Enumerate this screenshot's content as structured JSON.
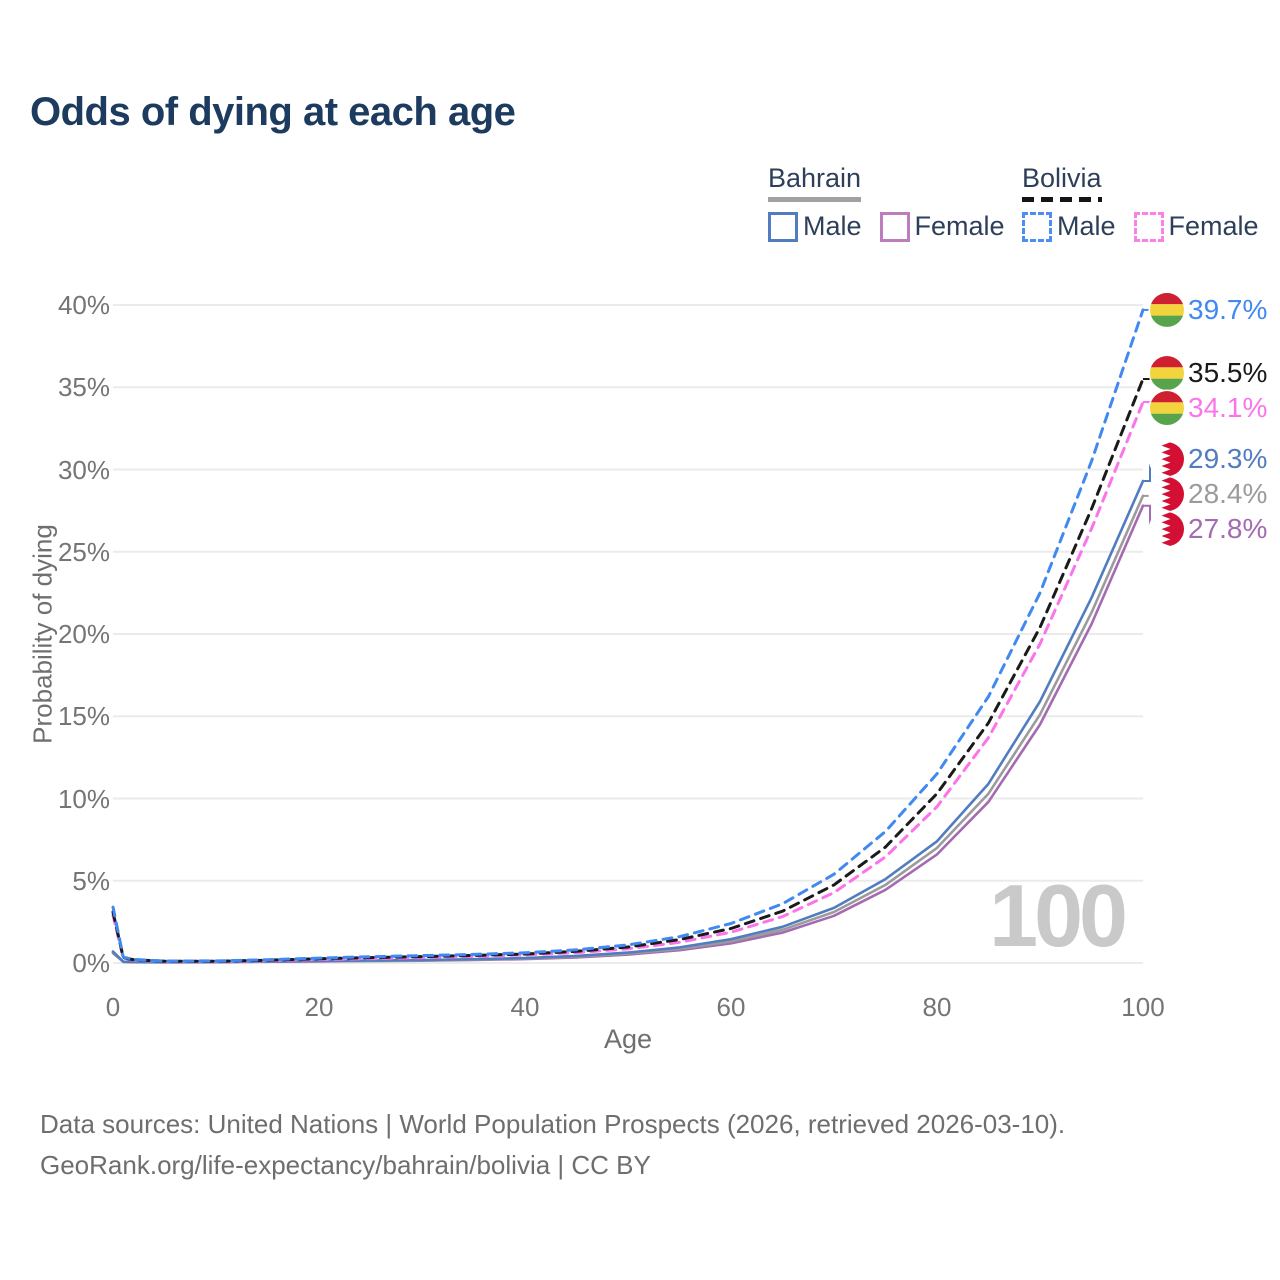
{
  "title": "Odds of dying at each age",
  "watermark": "100",
  "legend": {
    "groups": [
      {
        "country": "Bahrain",
        "line_style": "solid",
        "underline_color": "#a1a1a1",
        "items": [
          {
            "label": "Male",
            "color": "#517dc0",
            "dashed": false
          },
          {
            "label": "Female",
            "color": "#bd7cbe",
            "dashed": false
          }
        ]
      },
      {
        "country": "Bolivia",
        "line_style": "dashed",
        "underline_color": "#141414",
        "items": [
          {
            "label": "Male",
            "color": "#4d8df5",
            "dashed": true
          },
          {
            "label": "Female",
            "color": "#fb80e8",
            "dashed": true
          }
        ]
      }
    ]
  },
  "flags": {
    "bolivia": {
      "red": "#ce2030",
      "yellow": "#f3d43c",
      "green": "#57a44c"
    },
    "bahrain": {
      "red": "#d40f34",
      "white": "#ffffff"
    }
  },
  "chart_data": {
    "type": "line",
    "title": "Odds of dying at each age",
    "xlabel": "Age",
    "ylabel": "Probability of dying",
    "xlim": [
      0,
      100
    ],
    "ylim": [
      0,
      40
    ],
    "x_ticks": [
      0,
      20,
      40,
      60,
      80,
      100
    ],
    "y_ticks": [
      0,
      5,
      10,
      15,
      20,
      25,
      30,
      35,
      40
    ],
    "y_tick_suffix": "%",
    "grid": "horizontal",
    "x": [
      0,
      1,
      2,
      5,
      10,
      15,
      20,
      25,
      30,
      35,
      40,
      45,
      50,
      55,
      60,
      65,
      70,
      75,
      80,
      85,
      90,
      95,
      100
    ],
    "series": [
      {
        "name": "Bolivia Male",
        "country": "Bolivia",
        "sex": "male",
        "color": "#4189f2",
        "dash": true,
        "flag": "bolivia",
        "end_label": "39.7%",
        "values": [
          3.4,
          0.35,
          0.22,
          0.12,
          0.13,
          0.2,
          0.3,
          0.38,
          0.45,
          0.52,
          0.62,
          0.8,
          1.1,
          1.6,
          2.4,
          3.6,
          5.4,
          8.0,
          11.5,
          16.2,
          22.5,
          30.5,
          39.7
        ]
      },
      {
        "name": "Bolivia",
        "country": "Bolivia",
        "sex": "all",
        "color": "#1a1a1a",
        "dash": true,
        "flag": "bolivia",
        "end_label": "35.5%",
        "values": [
          3.1,
          0.32,
          0.2,
          0.11,
          0.11,
          0.17,
          0.26,
          0.33,
          0.39,
          0.46,
          0.55,
          0.71,
          0.97,
          1.42,
          2.1,
          3.15,
          4.75,
          7.05,
          10.3,
          14.6,
          20.4,
          27.6,
          35.5
        ]
      },
      {
        "name": "Bolivia Female",
        "country": "Bolivia",
        "sex": "female",
        "color": "#fb74ea",
        "dash": true,
        "flag": "bolivia",
        "end_label": "34.1%",
        "values": [
          2.9,
          0.29,
          0.18,
          0.1,
          0.1,
          0.14,
          0.21,
          0.27,
          0.33,
          0.4,
          0.49,
          0.63,
          0.86,
          1.26,
          1.87,
          2.82,
          4.28,
          6.45,
          9.5,
          13.7,
          19.4,
          26.4,
          34.1
        ]
      },
      {
        "name": "Bahrain Male",
        "country": "Bahrain",
        "sex": "male",
        "color": "#517dc0",
        "dash": false,
        "flag": "bahrain",
        "end_label": "29.3%",
        "values": [
          0.7,
          0.08,
          0.06,
          0.05,
          0.06,
          0.1,
          0.13,
          0.15,
          0.18,
          0.23,
          0.3,
          0.43,
          0.63,
          0.95,
          1.45,
          2.2,
          3.35,
          5.1,
          7.4,
          10.9,
          15.9,
          22.2,
          29.3
        ]
      },
      {
        "name": "Bahrain",
        "country": "Bahrain",
        "sex": "all",
        "color": "#9b9b9b",
        "dash": false,
        "flag": "bahrain",
        "end_label": "28.4%",
        "values": [
          0.65,
          0.07,
          0.05,
          0.05,
          0.06,
          0.09,
          0.11,
          0.13,
          0.16,
          0.2,
          0.27,
          0.38,
          0.57,
          0.86,
          1.32,
          2.02,
          3.1,
          4.75,
          7.0,
          10.3,
          15.1,
          21.3,
          28.4
        ]
      },
      {
        "name": "Bahrain Female",
        "country": "Bahrain",
        "sex": "female",
        "color": "#a46ab2",
        "dash": false,
        "flag": "bahrain",
        "end_label": "27.8%",
        "values": [
          0.6,
          0.07,
          0.05,
          0.04,
          0.05,
          0.08,
          0.1,
          0.12,
          0.14,
          0.18,
          0.24,
          0.34,
          0.51,
          0.78,
          1.2,
          1.85,
          2.87,
          4.45,
          6.6,
          9.8,
          14.5,
          20.6,
          27.8
        ]
      }
    ],
    "legend_position": "top-right",
    "x_axis_max_annotation": "100"
  },
  "footer": {
    "line1": "Data sources: United Nations | World Population Prospects (2026, retrieved 2026-03-10).",
    "line2": "GeoRank.org/life-expectancy/bahrain/bolivia | CC BY"
  }
}
